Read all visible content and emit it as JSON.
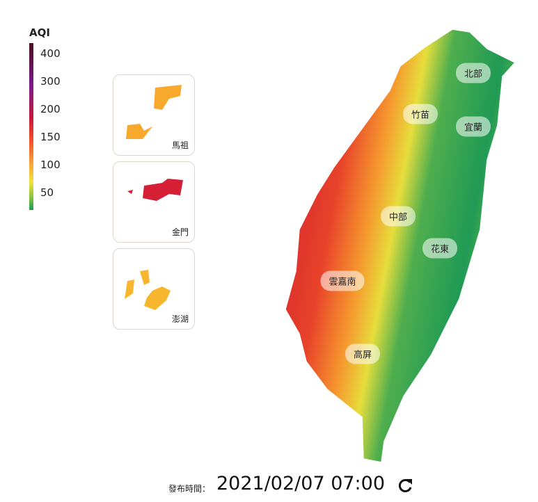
{
  "legend": {
    "title": "AQI",
    "ticks": [
      400,
      300,
      200,
      150,
      100,
      50
    ]
  },
  "insets": [
    {
      "label": "馬祖"
    },
    {
      "label": "金門"
    },
    {
      "label": "澎湖"
    }
  ],
  "regions": [
    {
      "label": "北部"
    },
    {
      "label": "竹苗"
    },
    {
      "label": "宜蘭"
    },
    {
      "label": "中部"
    },
    {
      "label": "花東"
    },
    {
      "label": "雲嘉南"
    },
    {
      "label": "高屏"
    }
  ],
  "footer": {
    "label": "發布時間：",
    "time": "2021/02/07 07:00"
  }
}
